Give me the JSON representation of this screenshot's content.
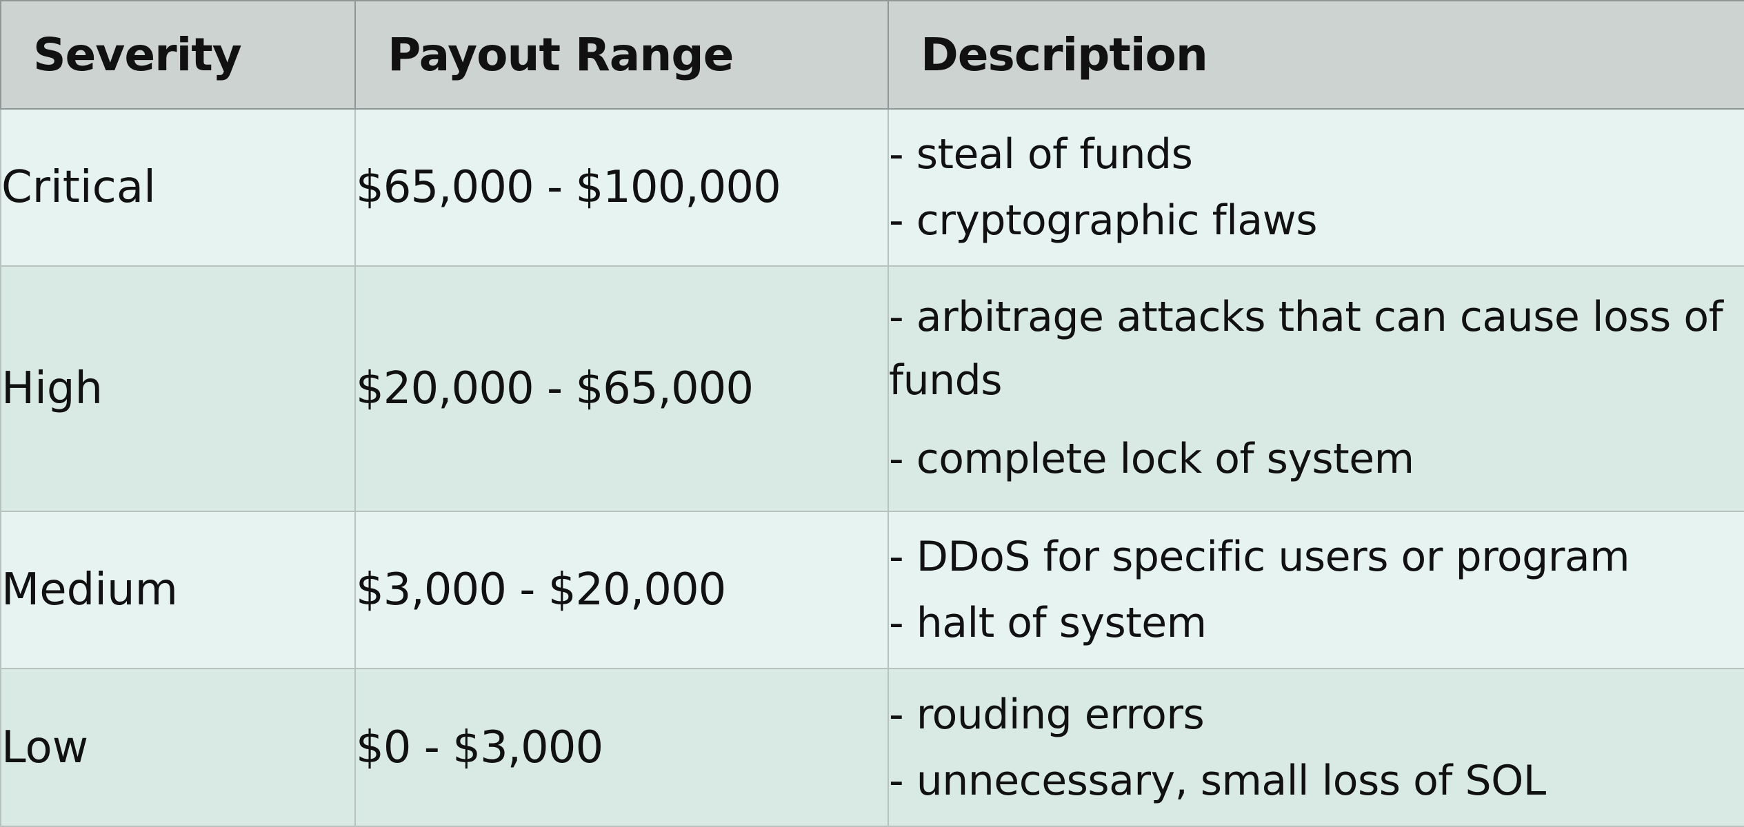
{
  "headers": {
    "severity": "Severity",
    "payout": "Payout Range",
    "description": "Description"
  },
  "rows": [
    {
      "severity": "Critical",
      "payout": "$65,000 - $100,000",
      "description": [
        "- steal of funds",
        "- cryptographic flaws"
      ]
    },
    {
      "severity": "High",
      "payout": "$20,000 - $65,000",
      "description": [
        "- arbitrage attacks that can cause loss of funds",
        "- complete lock of system"
      ]
    },
    {
      "severity": "Medium",
      "payout": "$3,000 - $20,000",
      "description": [
        "- DDoS for specific users or program",
        "- halt of system"
      ]
    },
    {
      "severity": "Low",
      "payout": "$0 - $3,000",
      "description": [
        "- rouding errors",
        "- unnecessary, small loss of SOL"
      ]
    }
  ],
  "colors": {
    "header_bg": "#cdd3d1",
    "row_light_bg": "#e6f3f0",
    "row_dark_bg": "#d9e9e3",
    "border": "#b7c1be"
  }
}
